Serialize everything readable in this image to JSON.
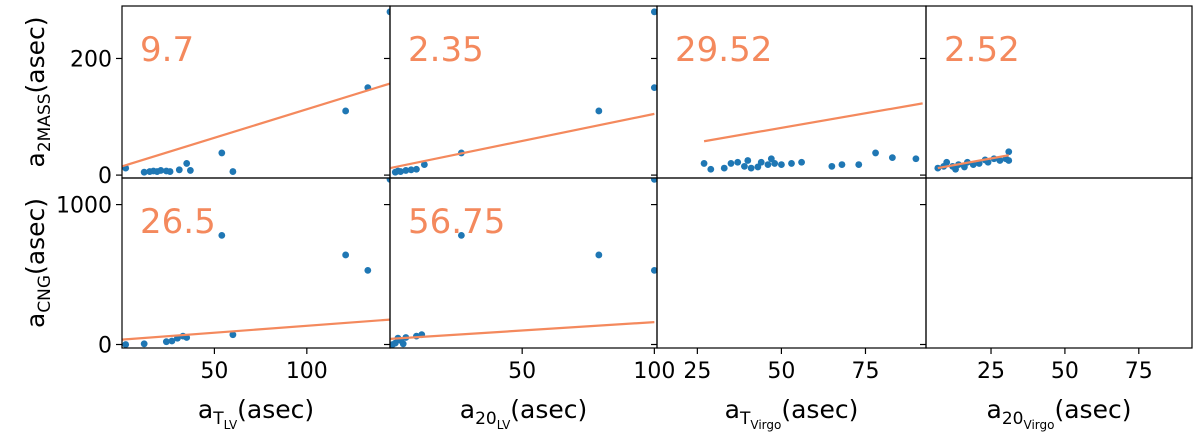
{
  "chart_data": {
    "type": "scatter",
    "colors": {
      "points": "#1f77b4",
      "fit": "#f4895d",
      "frame": "#000000"
    },
    "grid": false,
    "rows": [
      {
        "ylabel_main": "a",
        "ylabel_sub": "2MASS",
        "ylabel_rest": "(asec)",
        "ylim": [
          -5,
          290
        ],
        "yticks": [
          "0",
          "200"
        ],
        "ytick_values": [
          0,
          200
        ]
      },
      {
        "ylabel_main": "a",
        "ylabel_sub": "CNG",
        "ylabel_rest": "(asec)",
        "ylim": [
          -25,
          1190
        ],
        "yticks": [
          "0",
          "1000"
        ],
        "ytick_values": [
          0,
          1000
        ]
      }
    ],
    "columns": [
      {
        "xlabel_main": "a",
        "xlabel_sub": "T",
        "xlabel_subsub": "LV",
        "xlabel_rest": "(asec)",
        "xlim": [
          0,
          145
        ],
        "xticks": [
          "50",
          "100"
        ],
        "xtick_values": [
          50,
          100
        ]
      },
      {
        "xlabel_main": "a",
        "xlabel_sub": "20",
        "xlabel_subsub": "LV",
        "xlabel_rest": "(asec)",
        "xlim": [
          0,
          101
        ],
        "xticks": [
          "50",
          "100"
        ],
        "xtick_values": [
          50,
          100
        ]
      },
      {
        "xlabel_main": "a",
        "xlabel_sub": "T",
        "xlabel_subsub": "Virgo",
        "xlabel_rest": "(asec)",
        "xlim": [
          13,
          93
        ],
        "xticks": [
          "25",
          "50",
          "75"
        ],
        "xtick_values": [
          25,
          50,
          75
        ]
      },
      {
        "xlabel_main": "a",
        "xlabel_sub": "20",
        "xlabel_subsub": "Virgo",
        "xlabel_rest": "(asec)",
        "xlim": [
          3,
          93
        ],
        "xticks": [
          "25",
          "50",
          "75"
        ],
        "xtick_values": [
          25,
          50,
          75
        ]
      }
    ],
    "panels": [
      {
        "row": 0,
        "col": 0,
        "annotation": "9.7",
        "points": [
          [
            2,
            12
          ],
          [
            12,
            5
          ],
          [
            15,
            6
          ],
          [
            17,
            7
          ],
          [
            19,
            6
          ],
          [
            21,
            8
          ],
          [
            24,
            7
          ],
          [
            26,
            6
          ],
          [
            31,
            9
          ],
          [
            35,
            20
          ],
          [
            37,
            8
          ],
          [
            54,
            38
          ],
          [
            60,
            6
          ],
          [
            121,
            110
          ],
          [
            133,
            150
          ],
          [
            145,
            280
          ]
        ],
        "fit": [
          [
            0,
            15
          ],
          [
            145,
            157
          ]
        ]
      },
      {
        "row": 0,
        "col": 1,
        "annotation": "2.35",
        "points": [
          [
            2,
            5
          ],
          [
            3,
            7
          ],
          [
            4,
            6
          ],
          [
            6,
            8
          ],
          [
            8,
            9
          ],
          [
            10,
            10
          ],
          [
            13,
            18
          ],
          [
            27,
            38
          ],
          [
            79,
            110
          ],
          [
            100,
            150
          ],
          [
            100,
            280
          ]
        ],
        "fit": [
          [
            0,
            12
          ],
          [
            100,
            105
          ]
        ]
      },
      {
        "row": 0,
        "col": 2,
        "annotation": "29.52",
        "points": [
          [
            27,
            20
          ],
          [
            29,
            10
          ],
          [
            33,
            12
          ],
          [
            35,
            20
          ],
          [
            37,
            22
          ],
          [
            39,
            15
          ],
          [
            40,
            25
          ],
          [
            41,
            12
          ],
          [
            43,
            14
          ],
          [
            44,
            22
          ],
          [
            46,
            18
          ],
          [
            47,
            28
          ],
          [
            48,
            20
          ],
          [
            50,
            18
          ],
          [
            53,
            20
          ],
          [
            56,
            22
          ],
          [
            65,
            15
          ],
          [
            68,
            18
          ],
          [
            73,
            18
          ],
          [
            78,
            38
          ],
          [
            83,
            30
          ],
          [
            90,
            28
          ]
        ],
        "fit": [
          [
            27,
            58
          ],
          [
            92,
            123
          ]
        ]
      },
      {
        "row": 0,
        "col": 3,
        "annotation": "2.52",
        "points": [
          [
            7,
            12
          ],
          [
            9,
            15
          ],
          [
            10,
            22
          ],
          [
            12,
            15
          ],
          [
            13,
            10
          ],
          [
            14,
            18
          ],
          [
            16,
            14
          ],
          [
            17,
            22
          ],
          [
            19,
            18
          ],
          [
            21,
            20
          ],
          [
            23,
            26
          ],
          [
            24,
            22
          ],
          [
            26,
            28
          ],
          [
            28,
            25
          ],
          [
            30,
            28
          ],
          [
            31,
            40
          ],
          [
            31,
            25
          ]
        ],
        "fit": [
          [
            7,
            12
          ],
          [
            31,
            34
          ]
        ]
      },
      {
        "row": 1,
        "col": 0,
        "annotation": "26.5",
        "points": [
          [
            2,
            0
          ],
          [
            12,
            5
          ],
          [
            24,
            20
          ],
          [
            27,
            25
          ],
          [
            30,
            45
          ],
          [
            33,
            60
          ],
          [
            35,
            50
          ],
          [
            54,
            780
          ],
          [
            60,
            70
          ],
          [
            121,
            640
          ],
          [
            133,
            530
          ],
          [
            145,
            1180
          ]
        ],
        "fit": [
          [
            0,
            35
          ],
          [
            145,
            178
          ]
        ]
      },
      {
        "row": 1,
        "col": 1,
        "annotation": "56.75",
        "points": [
          [
            1,
            0
          ],
          [
            2,
            10
          ],
          [
            3,
            45
          ],
          [
            4,
            30
          ],
          [
            5,
            5
          ],
          [
            6,
            50
          ],
          [
            10,
            60
          ],
          [
            12,
            70
          ],
          [
            27,
            780
          ],
          [
            79,
            640
          ],
          [
            100,
            1180
          ],
          [
            100,
            530
          ]
        ],
        "fit": [
          [
            0,
            40
          ],
          [
            100,
            160
          ]
        ]
      },
      {
        "row": 1,
        "col": 2,
        "annotation": "",
        "points": [],
        "fit": []
      },
      {
        "row": 1,
        "col": 3,
        "annotation": "",
        "points": [],
        "fit": []
      }
    ]
  }
}
